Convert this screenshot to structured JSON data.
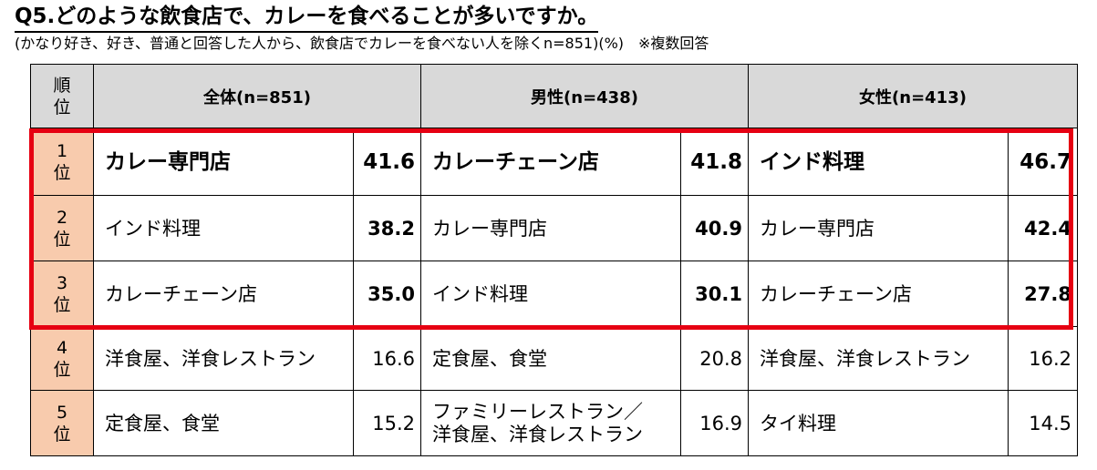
{
  "title": "Q5.どのような飲食店で、カレーを食べることが多いですか。",
  "subtitle": "(かなり好き、好き、普通と回答した人から、飲食店でカレーを食べない人を除くn=851)(%)　※複数回答",
  "header": {
    "rank_label_line1": "順",
    "rank_label_line2": "位",
    "groups": [
      "全体(n=851)",
      "男性(n=438)",
      "女性(n=413)"
    ]
  },
  "rows": [
    {
      "rank_num": "1",
      "rank_suffix": "位",
      "cells": [
        {
          "name": "カレー専門店",
          "value": "41.6"
        },
        {
          "name": "カレーチェーン店",
          "value": "41.8"
        },
        {
          "name": "インド料理",
          "value": "46.7"
        }
      ]
    },
    {
      "rank_num": "2",
      "rank_suffix": "位",
      "cells": [
        {
          "name": "インド料理",
          "value": "38.2"
        },
        {
          "name": "カレー専門店",
          "value": "40.9"
        },
        {
          "name": "カレー専門店",
          "value": "42.4"
        }
      ]
    },
    {
      "rank_num": "3",
      "rank_suffix": "位",
      "cells": [
        {
          "name": "カレーチェーン店",
          "value": "35.0"
        },
        {
          "name": "インド料理",
          "value": "30.1"
        },
        {
          "name": "カレーチェーン店",
          "value": "27.8"
        }
      ]
    },
    {
      "rank_num": "4",
      "rank_suffix": "位",
      "cells": [
        {
          "name": "洋食屋、洋食レストラン",
          "value": "16.6"
        },
        {
          "name": "定食屋、食堂",
          "value": "20.8"
        },
        {
          "name": "洋食屋、洋食レストラン",
          "value": "16.2"
        }
      ]
    },
    {
      "rank_num": "5",
      "rank_suffix": "位",
      "cells": [
        {
          "name": "定食屋、食堂",
          "value": "15.2"
        },
        {
          "name_line1": "ファミリーレストラン／",
          "name_line2": "洋食屋、洋食レストラン",
          "value": "16.9"
        },
        {
          "name": "タイ料理",
          "value": "14.5"
        }
      ]
    }
  ],
  "colors": {
    "header_bg": "#d9d9d9",
    "rank_bg": "#f8cbad",
    "highlight_border": "#e60012"
  }
}
